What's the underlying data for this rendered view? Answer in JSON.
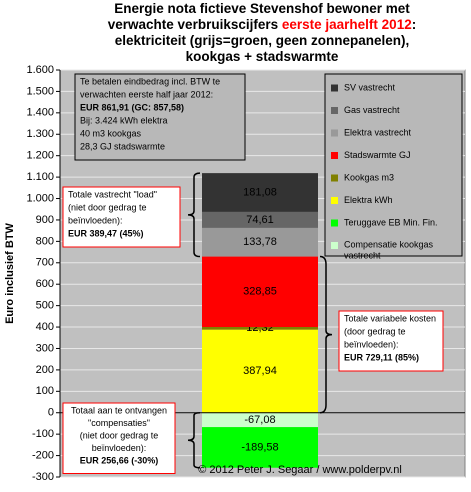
{
  "chart_data": {
    "type": "stacked_bar",
    "title_lines": [
      [
        {
          "text": "Energie nota fictieve Stevenshof bewoner met"
        }
      ],
      [
        {
          "text": "verwachte verbruikscijfers "
        },
        {
          "text": "eerste jaarhelft 2012",
          "color": "#ff0000"
        },
        {
          "text": ":"
        }
      ],
      [
        {
          "text": "elektriciteit (grijs=groen, geen zonnepanelen),"
        }
      ],
      [
        {
          "text": "kookgas + stadswarmte"
        }
      ]
    ],
    "y_label": "Euro inclusief BTW",
    "ylim": [
      -300,
      1600
    ],
    "yticks": [
      -300,
      -200,
      -100,
      0,
      100,
      200,
      300,
      400,
      500,
      600,
      700,
      800,
      900,
      {
        "value": 1000,
        "label": "1.000"
      },
      {
        "value": 1100,
        "label": "1.100"
      },
      {
        "value": 1200,
        "label": "1.200"
      },
      {
        "value": 1300,
        "label": "1.300"
      },
      {
        "value": 1400,
        "label": "1.400"
      },
      {
        "value": 1500,
        "label": "1.500"
      },
      {
        "value": 1600,
        "label": "1.600"
      }
    ],
    "series": [
      {
        "name": "SV vastrecht",
        "color": "#333333",
        "values": [
          181.08
        ],
        "value_labels": [
          "181,08"
        ]
      },
      {
        "name": "Gas vastrecht",
        "color": "#666666",
        "values": [
          74.61
        ],
        "value_labels": [
          "74,61"
        ]
      },
      {
        "name": "Elektra vastrecht",
        "color": "#999999",
        "values": [
          133.78
        ],
        "value_labels": [
          "133,78"
        ]
      },
      {
        "name": "Stadswarmte GJ",
        "color": "#ff0000",
        "values": [
          328.85
        ],
        "value_labels": [
          "328,85"
        ]
      },
      {
        "name": "Kookgas m3",
        "color": "#808000",
        "values": [
          12.32
        ],
        "value_labels": [
          "12,32"
        ]
      },
      {
        "name": "Elektra kWh",
        "color": "#ffff00",
        "values": [
          387.94
        ],
        "value_labels": [
          "387,94"
        ]
      },
      {
        "name": "Teruggave EB Min. Fin.",
        "color": "#00ff00",
        "values": [
          -189.58
        ],
        "value_labels": [
          "-189,58"
        ]
      },
      {
        "name": "Compensatie kookgas vastrecht",
        "color": "#ccffcc",
        "values": [
          -67.08
        ],
        "value_labels": [
          "-67,08"
        ]
      }
    ],
    "info_box": [
      "Te betalen eindbedrag incl. BTW te",
      "verwachten eerste half jaar 2012:",
      "EUR 861,91 (GC: 857,58)",
      "Bij: 3.424 kWh elektra",
      "40 m3 kookgas",
      "28,3 GJ stadswarmte"
    ],
    "callout_fixed": [
      "Totale vastrecht \"load\"",
      "(niet door gedrag te",
      "beïnvloeden):",
      "EUR 389,47 (45%)"
    ],
    "callout_variable": [
      "Totale variabele kosten",
      "(door gedrag te",
      "beïnvloeden):",
      "EUR 729,11 (85%)"
    ],
    "callout_compensation": [
      "Totaal aan te ontvangen",
      "\"compensaties\"",
      "(niet door gedrag te",
      "beïnvloeden):",
      "EUR 256,66 (-30%)"
    ],
    "copyright": "© 2012 Peter J. Segaar / www.polderpv.nl"
  }
}
